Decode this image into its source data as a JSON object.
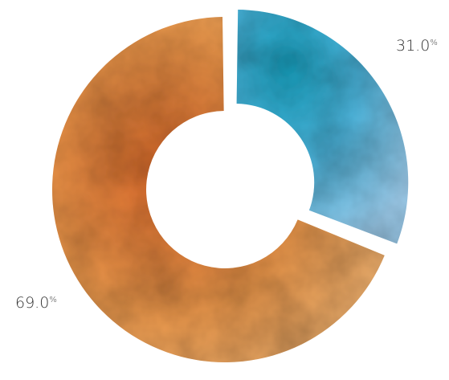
{
  "chart_data": {
    "type": "pie",
    "variant": "donut",
    "title": "",
    "slices": [
      {
        "label": "",
        "value": 31.0,
        "display_number": "31.0",
        "display_unit": "%",
        "color": "#4FB8E0"
      },
      {
        "label": "",
        "value": 69.0,
        "display_number": "69.0",
        "display_unit": "%",
        "color": "#EE9A4D"
      }
    ],
    "style": "watercolor",
    "exploded_slice_index": 0,
    "legend": "none"
  }
}
